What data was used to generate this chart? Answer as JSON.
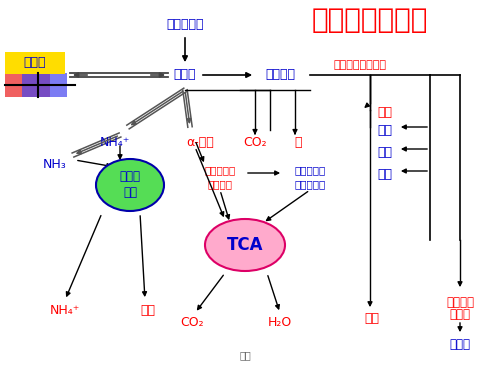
{
  "title": "氨基酸代谢概况",
  "bg_color": "#ffffff",
  "title_color": "#ff0000",
  "subtitle": "（次生物质代谢）",
  "label_shiwu": "食物蛋白质",
  "label_aminoacid": "氨基酸",
  "label_special": "特殊途径",
  "label_tibai": "体蛋白",
  "label_nh4_top": "NH₄⁺",
  "label_ketoacid": "α-锐酸",
  "label_co2_top": "CO₂",
  "label_an": "胺",
  "label_nh3": "NH₃",
  "label_ornithine": "鸟氨酸循环",
  "label_sugar": "糖及其代谢\n中间产物",
  "label_lipid": "脂肪及其代\n谢中间产物",
  "label_tca": "TCA",
  "label_nh4_bot": "NH₄⁺",
  "label_urea": "尿素",
  "label_co2_bot": "CO₂",
  "label_h2o": "H₂O",
  "label_hormone": "激素",
  "label_porphyrin": "卟啊",
  "label_pyrimidine": "器啰",
  "label_purine": "嘘呑",
  "label_uricacid": "尿酸",
  "label_nicotinamide": "尼克酰氨\n衍生物",
  "label_creatine": "肌酸胺",
  "label_jingxuan": "精选",
  "colors": {
    "blue": "#0000cc",
    "red": "#ff0000",
    "black": "#000000",
    "gray": "#666666",
    "green_fill": "#55dd55",
    "green_edge": "#0000aa",
    "pink_fill": "#ffaacc",
    "pink_edge": "#dd0066",
    "yellow": "#ffdd00",
    "red_patch": "#ff6666",
    "blue_patch": "#6666ff"
  }
}
